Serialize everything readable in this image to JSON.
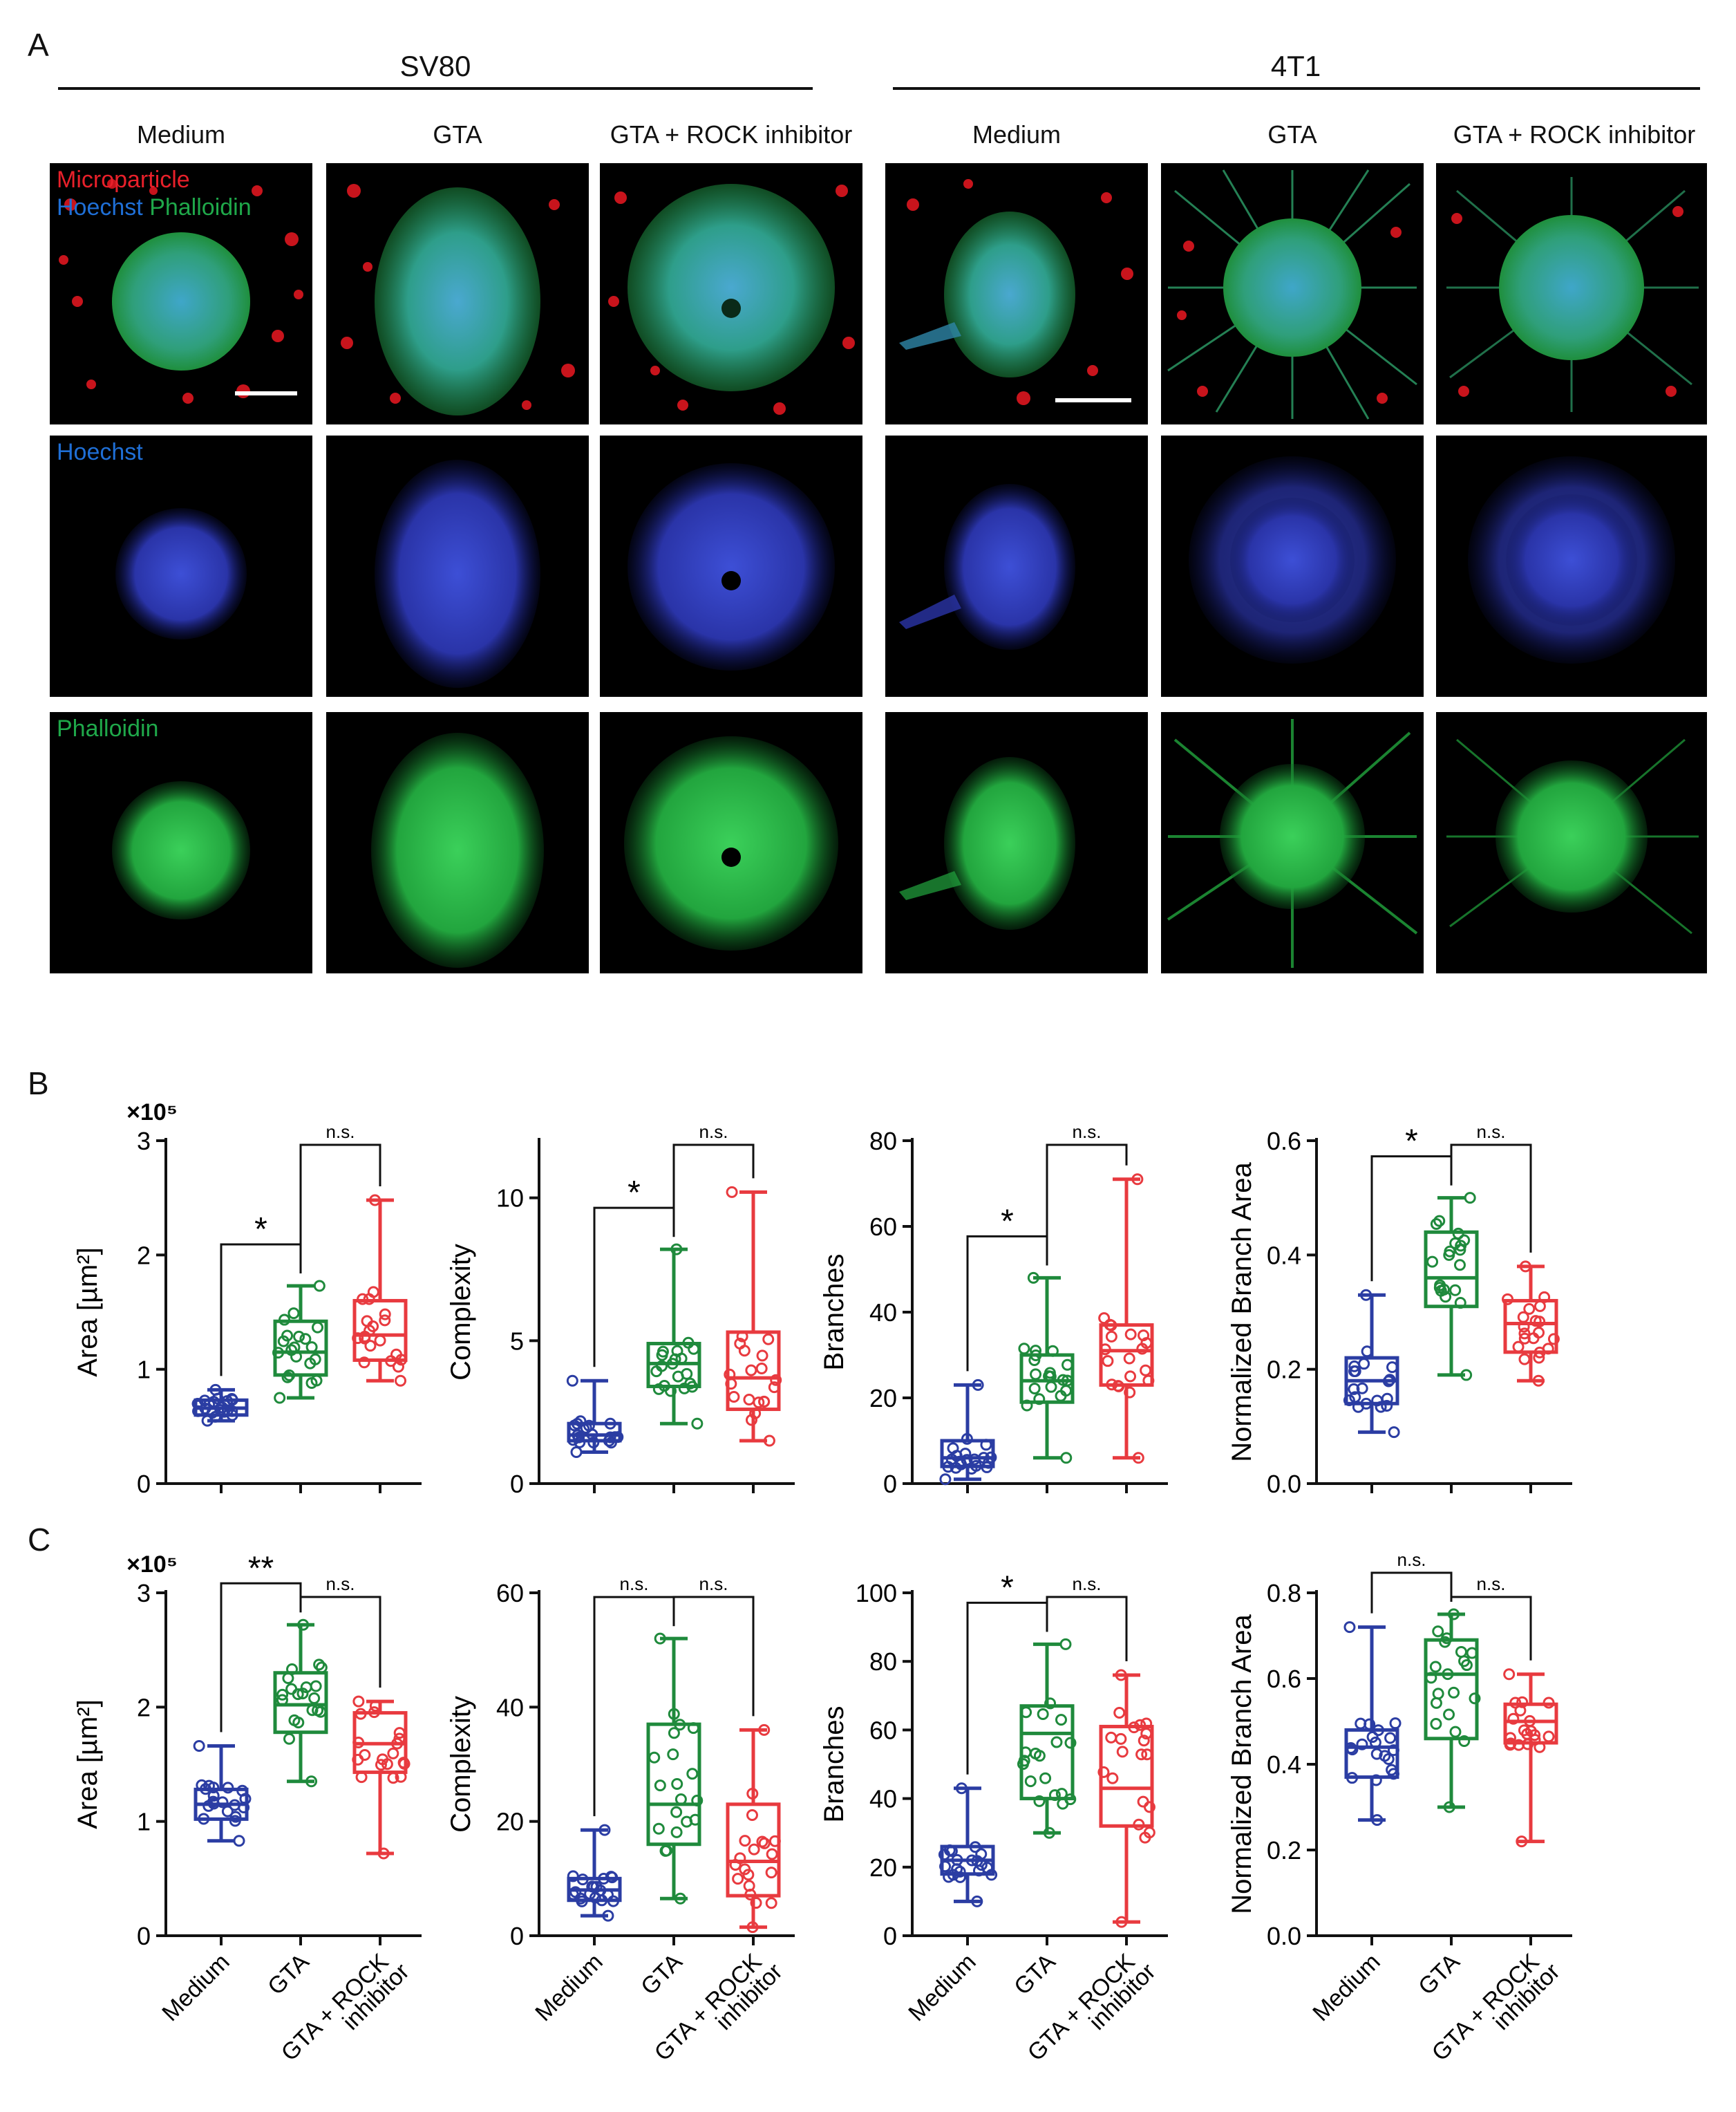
{
  "panel_letters": {
    "a": "A",
    "b": "B",
    "c": "C"
  },
  "panel_a": {
    "groups": [
      {
        "title": "SV80",
        "columns": [
          "Medium",
          "GTA",
          "GTA + ROCK inhibitor"
        ]
      },
      {
        "title": "4T1",
        "columns": [
          "Medium",
          "GTA",
          "GTA + ROCK inhibitor"
        ]
      }
    ],
    "channel_labels": {
      "merge": [
        "Microparticle",
        "Hoechst",
        "Phalloidin"
      ],
      "hoechst": "Hoechst",
      "phalloidin": "Phalloidin"
    },
    "colors": {
      "microparticle": "#e8202a",
      "hoechst": "#1f6fd6",
      "phalloidin": "#1fa84a"
    }
  },
  "chart_data": [
    {
      "id": "B1",
      "type": "box",
      "row": "B",
      "ylabel": "Area [µm²]",
      "y_multiplier": "×10⁵",
      "ylim": [
        0,
        3
      ],
      "yticks": [
        "0",
        "1",
        "2",
        "3"
      ],
      "categories": [
        "Medium",
        "GTA",
        "GTA + ROCK inhibitor"
      ],
      "boxes": [
        {
          "min": 0.55,
          "q1": 0.6,
          "median": 0.66,
          "q3": 0.73,
          "max": 0.82
        },
        {
          "min": 0.75,
          "q1": 0.95,
          "median": 1.15,
          "q3": 1.42,
          "max": 1.73
        },
        {
          "min": 0.9,
          "q1": 1.08,
          "median": 1.3,
          "q3": 1.6,
          "max": 2.48
        }
      ],
      "sig": [
        {
          "label": "*",
          "from": 0,
          "to": 1
        },
        {
          "label": "n.s.",
          "from": 1,
          "to": 2
        }
      ]
    },
    {
      "id": "B2",
      "type": "box",
      "row": "B",
      "ylabel": "Complexity",
      "ylim": [
        0,
        12
      ],
      "yticks": [
        "0",
        "5",
        "10"
      ],
      "categories": [
        "Medium",
        "GTA",
        "GTA + ROCK inhibitor"
      ],
      "boxes": [
        {
          "min": 1.1,
          "q1": 1.5,
          "median": 1.7,
          "q3": 2.1,
          "max": 3.6
        },
        {
          "min": 2.1,
          "q1": 3.4,
          "median": 4.2,
          "q3": 4.9,
          "max": 8.2
        },
        {
          "min": 1.5,
          "q1": 2.6,
          "median": 3.7,
          "q3": 5.3,
          "max": 10.2
        }
      ],
      "sig": [
        {
          "label": "*",
          "from": 0,
          "to": 1
        },
        {
          "label": "n.s.",
          "from": 1,
          "to": 2
        }
      ]
    },
    {
      "id": "B3",
      "type": "box",
      "row": "B",
      "ylabel": "Branches",
      "ylim": [
        0,
        80
      ],
      "yticks": [
        "0",
        "20",
        "40",
        "60",
        "80"
      ],
      "categories": [
        "Medium",
        "GTA",
        "GTA + ROCK inhibitor"
      ],
      "boxes": [
        {
          "min": 1,
          "q1": 4,
          "median": 6,
          "q3": 10,
          "max": 23
        },
        {
          "min": 6,
          "q1": 19,
          "median": 24,
          "q3": 30,
          "max": 48
        },
        {
          "min": 6,
          "q1": 23,
          "median": 31,
          "q3": 37,
          "max": 71
        }
      ],
      "sig": [
        {
          "label": "*",
          "from": 0,
          "to": 1
        },
        {
          "label": "n.s.",
          "from": 1,
          "to": 2
        }
      ]
    },
    {
      "id": "B4",
      "type": "box",
      "row": "B",
      "ylabel": "Normalized Branch Area",
      "ylim": [
        0,
        0.6
      ],
      "yticks": [
        "0.0",
        "0.2",
        "0.4",
        "0.6"
      ],
      "categories": [
        "Medium",
        "GTA",
        "GTA + ROCK inhibitor"
      ],
      "boxes": [
        {
          "min": 0.09,
          "q1": 0.14,
          "median": 0.18,
          "q3": 0.22,
          "max": 0.33
        },
        {
          "min": 0.19,
          "q1": 0.31,
          "median": 0.36,
          "q3": 0.44,
          "max": 0.5
        },
        {
          "min": 0.18,
          "q1": 0.23,
          "median": 0.28,
          "q3": 0.32,
          "max": 0.38
        }
      ],
      "sig": [
        {
          "label": "*",
          "from": 0,
          "to": 1
        },
        {
          "label": "n.s.",
          "from": 1,
          "to": 2
        }
      ]
    },
    {
      "id": "C1",
      "type": "box",
      "row": "C",
      "ylabel": "Area [µm²]",
      "y_multiplier": "×10⁵",
      "ylim": [
        0,
        3
      ],
      "yticks": [
        "0",
        "1",
        "2",
        "3"
      ],
      "categories": [
        "Medium",
        "GTA",
        "GTA + ROCK inhibitor"
      ],
      "boxes": [
        {
          "min": 0.83,
          "q1": 1.02,
          "median": 1.15,
          "q3": 1.28,
          "max": 1.66
        },
        {
          "min": 1.35,
          "q1": 1.78,
          "median": 2.02,
          "q3": 2.3,
          "max": 2.72
        },
        {
          "min": 0.72,
          "q1": 1.43,
          "median": 1.68,
          "q3": 1.95,
          "max": 2.05
        }
      ],
      "sig": [
        {
          "label": "**",
          "from": 0,
          "to": 1
        },
        {
          "label": "n.s.",
          "from": 1,
          "to": 2
        }
      ]
    },
    {
      "id": "C2",
      "type": "box",
      "row": "C",
      "ylabel": "Complexity",
      "ylim": [
        0,
        60
      ],
      "yticks": [
        "0",
        "20",
        "40",
        "60"
      ],
      "categories": [
        "Medium",
        "GTA",
        "GTA + ROCK inhibitor"
      ],
      "boxes": [
        {
          "min": 3.5,
          "q1": 6.2,
          "median": 8,
          "q3": 10,
          "max": 18.5
        },
        {
          "min": 6.5,
          "q1": 16,
          "median": 23,
          "q3": 37,
          "max": 52
        },
        {
          "min": 1.5,
          "q1": 7,
          "median": 13,
          "q3": 23,
          "max": 36
        }
      ],
      "sig": [
        {
          "label": "n.s.",
          "from": 0,
          "to": 1
        },
        {
          "label": "n.s.",
          "from": 1,
          "to": 2
        }
      ]
    },
    {
      "id": "C3",
      "type": "box",
      "row": "C",
      "ylabel": "Branches",
      "ylim": [
        0,
        100
      ],
      "yticks": [
        "0",
        "20",
        "40",
        "60",
        "80",
        "100"
      ],
      "categories": [
        "Medium",
        "GTA",
        "GTA + ROCK inhibitor"
      ],
      "boxes": [
        {
          "min": 10,
          "q1": 18,
          "median": 22,
          "q3": 26,
          "max": 43
        },
        {
          "min": 30,
          "q1": 40,
          "median": 59,
          "q3": 67,
          "max": 85
        },
        {
          "min": 4,
          "q1": 32,
          "median": 43,
          "q3": 61,
          "max": 76
        }
      ],
      "sig": [
        {
          "label": "*",
          "from": 0,
          "to": 1
        },
        {
          "label": "n.s.",
          "from": 1,
          "to": 2
        }
      ]
    },
    {
      "id": "C4",
      "type": "box",
      "row": "C",
      "ylabel": "Normalized Branch Area",
      "ylim": [
        0,
        0.8
      ],
      "yticks": [
        "0.0",
        "0.2",
        "0.4",
        "0.6",
        "0.8"
      ],
      "categories": [
        "Medium",
        "GTA",
        "GTA + ROCK inhibitor"
      ],
      "boxes": [
        {
          "min": 0.27,
          "q1": 0.37,
          "median": 0.44,
          "q3": 0.48,
          "max": 0.72
        },
        {
          "min": 0.3,
          "q1": 0.46,
          "median": 0.61,
          "q3": 0.69,
          "max": 0.75
        },
        {
          "min": 0.22,
          "q1": 0.45,
          "median": 0.5,
          "q3": 0.54,
          "max": 0.61
        }
      ],
      "sig": [
        {
          "label": "n.s.",
          "from": 0,
          "to": 1
        },
        {
          "label": "n.s.",
          "from": 1,
          "to": 2
        }
      ]
    }
  ],
  "x_tick_labels": [
    "Medium",
    "GTA",
    "GTA + ROCK",
    "inhibitor"
  ],
  "series_colors": [
    "#2b3da3",
    "#1f8a3c",
    "#e83a3f"
  ]
}
